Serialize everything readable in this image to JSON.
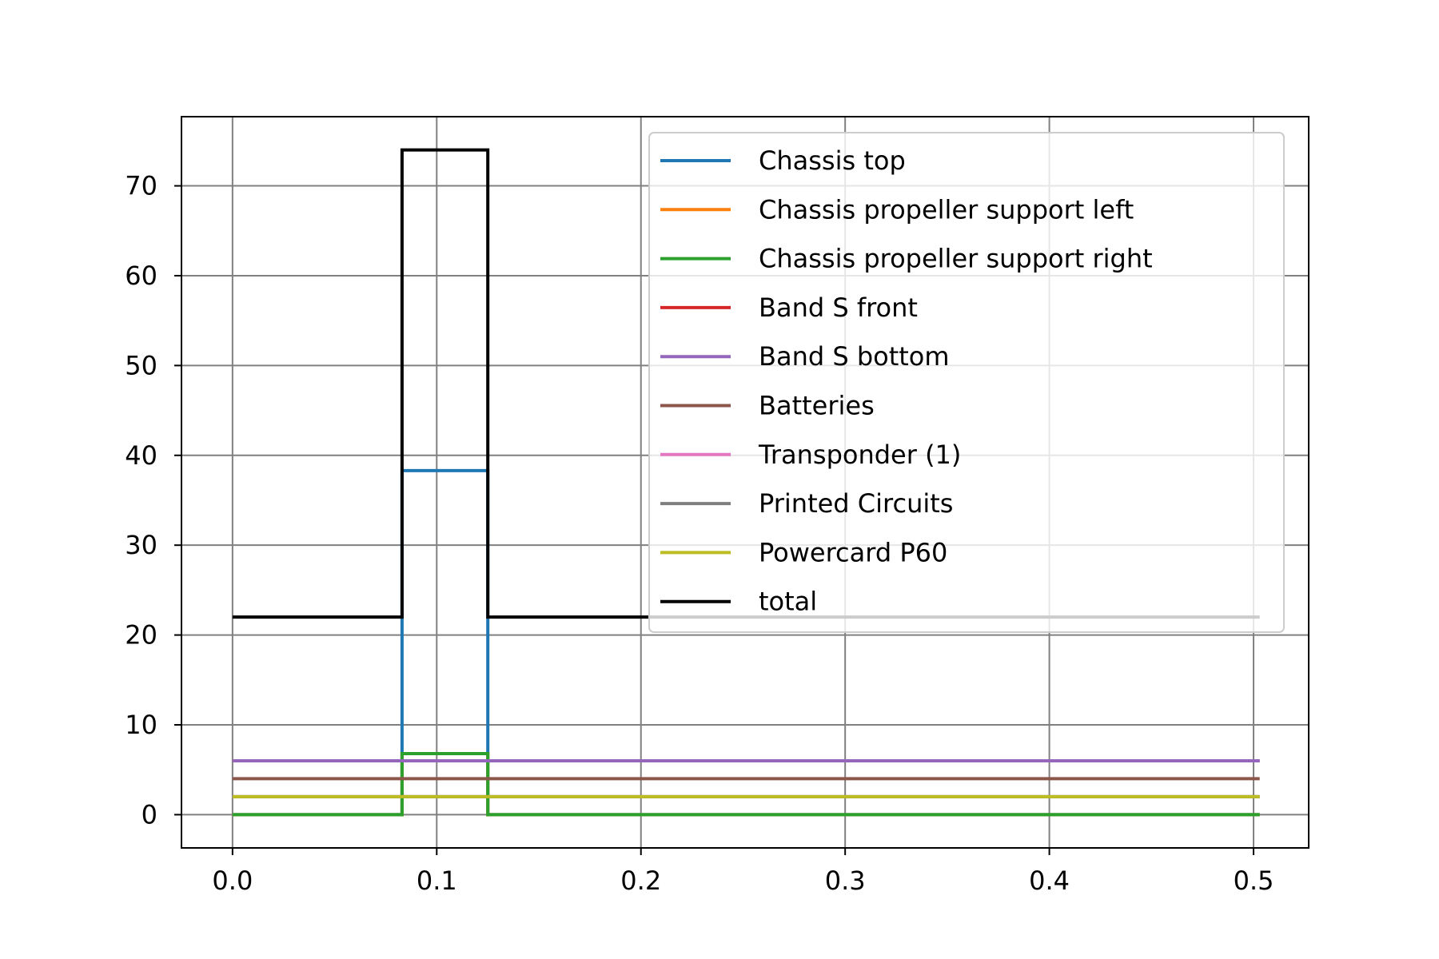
{
  "chart_data": {
    "type": "line",
    "title": "",
    "xlabel": "",
    "ylabel": "",
    "xlim": [
      -0.025,
      0.527
    ],
    "ylim": [
      -3.7,
      77.7
    ],
    "grid": true,
    "legend_position": "top-right",
    "x_ticks": [
      "0.0",
      "0.1",
      "0.2",
      "0.3",
      "0.4",
      "0.5"
    ],
    "x_tick_values": [
      0.0,
      0.1,
      0.2,
      0.3,
      0.4,
      0.5
    ],
    "y_ticks": [
      "0",
      "10",
      "20",
      "30",
      "40",
      "50",
      "60",
      "70"
    ],
    "y_tick_values": [
      0,
      10,
      20,
      30,
      40,
      50,
      60,
      70
    ],
    "series": [
      {
        "name": "Chassis top",
        "color": "#1f77b4",
        "x": [
          0.0,
          0.083,
          0.083,
          0.125,
          0.125,
          0.503
        ],
        "y": [
          0,
          0,
          38.3,
          38.3,
          0,
          0
        ]
      },
      {
        "name": "Chassis propeller support left",
        "color": "#ff7f0e",
        "x": [
          0.0,
          0.083,
          0.083,
          0.125,
          0.125,
          0.503
        ],
        "y": [
          0,
          0,
          6.8,
          6.8,
          0,
          0
        ]
      },
      {
        "name": "Chassis propeller support right",
        "color": "#2ca02c",
        "x": [
          0.0,
          0.083,
          0.083,
          0.125,
          0.125,
          0.503
        ],
        "y": [
          0,
          0,
          6.8,
          6.8,
          0,
          0
        ]
      },
      {
        "name": "Band S front",
        "color": "#d62728",
        "x": [
          0.0,
          0.503
        ],
        "y": [
          6,
          6
        ]
      },
      {
        "name": "Band S bottom",
        "color": "#9467bd",
        "x": [
          0.0,
          0.503
        ],
        "y": [
          6,
          6
        ]
      },
      {
        "name": "Batteries",
        "color": "#8c564b",
        "x": [
          0.0,
          0.503
        ],
        "y": [
          4,
          4
        ]
      },
      {
        "name": "Transponder (1)",
        "color": "#e377c2",
        "x": [
          0.0,
          0.503
        ],
        "y": [
          2,
          2
        ]
      },
      {
        "name": "Printed Circuits",
        "color": "#7f7f7f",
        "x": [
          0.0,
          0.503
        ],
        "y": [
          2,
          2
        ]
      },
      {
        "name": "Powercard P60",
        "color": "#bcbd22",
        "x": [
          0.0,
          0.503
        ],
        "y": [
          2,
          2
        ]
      },
      {
        "name": "total",
        "color": "#000000",
        "x": [
          0.0,
          0.083,
          0.083,
          0.125,
          0.125,
          0.503
        ],
        "y": [
          22,
          22,
          74,
          74,
          22,
          22
        ]
      }
    ]
  }
}
